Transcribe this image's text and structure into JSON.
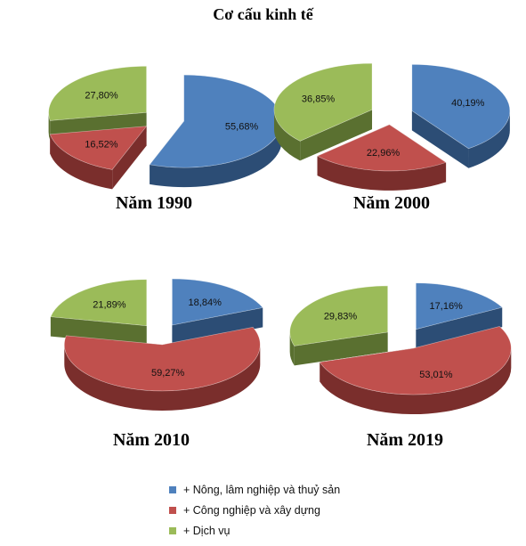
{
  "chart_data": {
    "type": "pie",
    "title": "Cơ cấu kinh tế",
    "legend": [
      {
        "label": "+ Nông, lâm nghiệp và thuỷ sản",
        "color": "#4f81bd",
        "dark": "#2c4d75"
      },
      {
        "label": "+ Công nghiệp và xây dựng",
        "color": "#c0504d",
        "dark": "#7a2e2c"
      },
      {
        "label": "+ Dịch vụ",
        "color": "#9bbb59",
        "dark": "#5a7030"
      }
    ],
    "pies": [
      {
        "caption": "Năm 1990",
        "values": [
          55.68,
          16.52,
          27.8
        ],
        "labels": [
          "55,68%",
          "16,52%",
          "27,80%"
        ]
      },
      {
        "caption": "Năm 2000",
        "values": [
          40.19,
          22.96,
          36.85
        ],
        "labels": [
          "40,19%",
          "22,96%",
          "36,85%"
        ]
      },
      {
        "caption": "Năm 2010",
        "values": [
          18.84,
          59.27,
          21.89
        ],
        "labels": [
          "18,84%",
          "59,27%",
          "21,89%"
        ]
      },
      {
        "caption": "Năm 2019",
        "values": [
          17.16,
          53.01,
          29.83
        ],
        "labels": [
          "17,16%",
          "53,01%",
          "29,83%"
        ]
      }
    ],
    "legend_position": "bottom"
  }
}
